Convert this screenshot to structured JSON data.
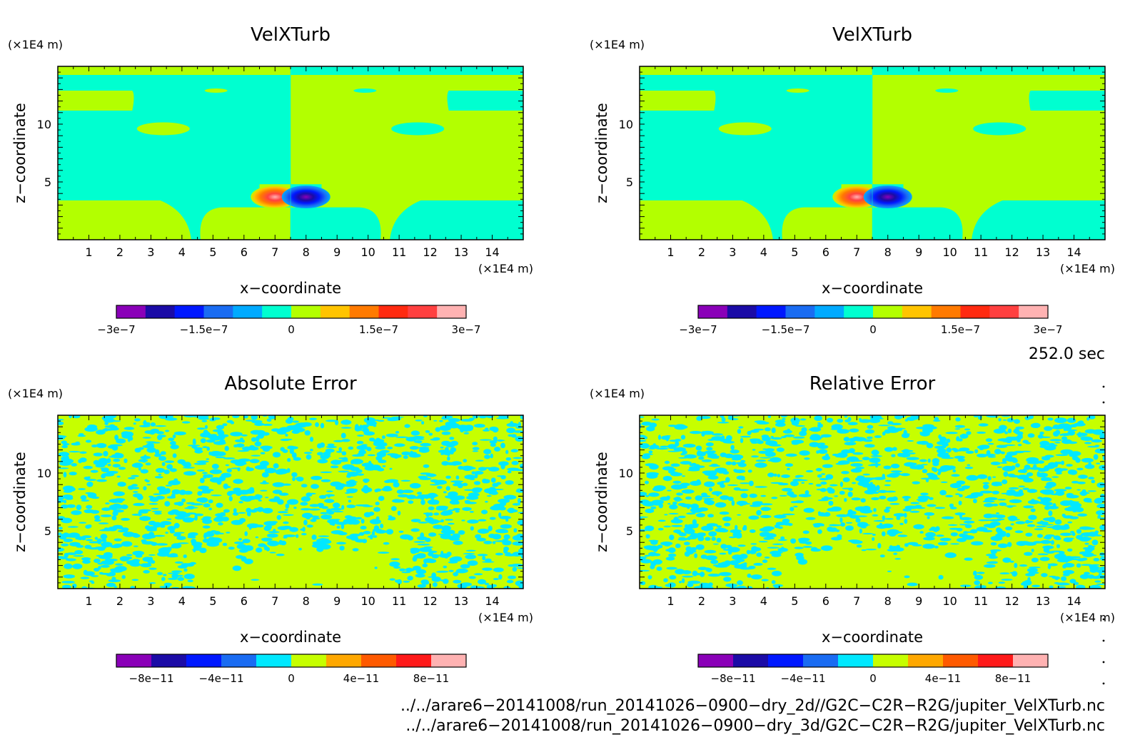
{
  "colors": {
    "velx_levels": [
      "#8a00b8",
      "#1b0ba6",
      "#0018ff",
      "#1a6cf2",
      "#00aaff",
      "#00ffd0",
      "#b3ff00",
      "#ffc400",
      "#ff7a00",
      "#ff2a10",
      "#ff4040",
      "#ffb2b2"
    ],
    "err_levels": [
      "#8a00b8",
      "#1b0ba6",
      "#0018ff",
      "#1a6cf2",
      "#00e8ff",
      "#c6ff00",
      "#ffa800",
      "#ff5a00",
      "#ff1a1a",
      "#ffb2b2"
    ]
  },
  "chart_data": [
    {
      "type": "heatmap",
      "title": "VelXTurb",
      "xlabel": "x−coordinate",
      "ylabel": "z−coordinate",
      "x_unit": "(×1E4 m)",
      "y_unit": "(×1E4 m)",
      "xlim": [
        0,
        15
      ],
      "ylim": [
        0,
        15
      ],
      "x_ticks": [
        1,
        2,
        3,
        4,
        5,
        6,
        7,
        8,
        9,
        10,
        11,
        12,
        13,
        14
      ],
      "y_ticks": [
        5,
        10
      ],
      "colorbar_labels": [
        "−3e−7",
        "−1.5e−7",
        "0",
        "1.5e−7",
        "3e−7"
      ],
      "features": [
        {
          "shape": "dipole",
          "positive_center": [
            7.0,
            3.7
          ],
          "negative_center": [
            8.0,
            3.7
          ]
        }
      ]
    },
    {
      "type": "heatmap",
      "title": "VelXTurb",
      "xlabel": "x−coordinate",
      "ylabel": "z−coordinate",
      "x_unit": "(×1E4 m)",
      "y_unit": "(×1E4 m)",
      "xlim": [
        0,
        15
      ],
      "ylim": [
        0,
        15
      ],
      "x_ticks": [
        1,
        2,
        3,
        4,
        5,
        6,
        7,
        8,
        9,
        10,
        11,
        12,
        13,
        14
      ],
      "y_ticks": [
        5,
        10
      ],
      "colorbar_labels": [
        "−3e−7",
        "−1.5e−7",
        "0",
        "1.5e−7",
        "3e−7"
      ],
      "features": [
        {
          "shape": "dipole",
          "positive_center": [
            7.0,
            3.7
          ],
          "negative_center": [
            8.0,
            3.7
          ]
        }
      ]
    },
    {
      "type": "heatmap",
      "title": "Absolute Error",
      "xlabel": "x−coordinate",
      "ylabel": "z−coordinate",
      "x_unit": "(×1E4 m)",
      "y_unit": "(×1E4 m)",
      "xlim": [
        0,
        15
      ],
      "ylim": [
        0,
        15
      ],
      "x_ticks": [
        1,
        2,
        3,
        4,
        5,
        6,
        7,
        8,
        9,
        10,
        11,
        12,
        13,
        14
      ],
      "y_ticks": [
        5,
        10
      ],
      "colorbar_labels": [
        "−8e−11",
        "−4e−11",
        "0",
        "4e−11",
        "8e−11"
      ],
      "pattern": "noise"
    },
    {
      "type": "heatmap",
      "title": "Relative Error",
      "xlabel": "x−coordinate",
      "ylabel": "z−coordinate",
      "x_unit": "(×1E4 m)",
      "y_unit": "(×1E4 m)",
      "xlim": [
        0,
        15
      ],
      "ylim": [
        0,
        15
      ],
      "x_ticks": [
        1,
        2,
        3,
        4,
        5,
        6,
        7,
        8,
        9,
        10,
        11,
        12,
        13,
        14
      ],
      "y_ticks": [
        5,
        10
      ],
      "colorbar_labels": [
        "−8e−11",
        "−4e−11",
        "0",
        "4e−11",
        "8e−11"
      ],
      "pattern": "noise"
    }
  ],
  "time_label": "252.0 sec",
  "file_paths": [
    "../../arare6−20141008/run_20141026−0900−dry_2d//G2C−C2R−R2G/jupiter_VelXTurb.nc",
    "../../arare6−20141008/run_20141026−0900−dry_3d/G2C−C2R−R2G/jupiter_VelXTurb.nc"
  ]
}
